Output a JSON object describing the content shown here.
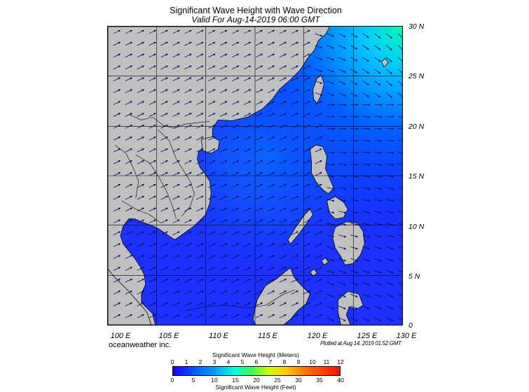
{
  "title": "Significant Wave Height with Wave Direction",
  "subtitle": "Valid For Aug-14-2019 06:00 GMT",
  "credit": "oceanweather inc.",
  "plotted": "Plotted at Aug 14, 2019 01:52 GMT",
  "lat_labels": [
    "30 N",
    "25 N",
    "20 N",
    "15 N",
    "10 N",
    "5 N",
    "0"
  ],
  "lon_labels": [
    "100 E",
    "105 E",
    "110 E",
    "115 E",
    "120 E",
    "125 E",
    "130 E"
  ],
  "colorbar": {
    "title_meters": "Significant Wave Height (Meters)",
    "title_feet": "Significant Wave Height (Feet)",
    "meters_ticks": [
      "0",
      "1",
      "2",
      "3",
      "4",
      "5",
      "6",
      "7",
      "8",
      "9",
      "10",
      "11",
      "12"
    ],
    "feet_ticks": [
      "0",
      "5",
      "10",
      "15",
      "20",
      "25",
      "30",
      "35",
      "40"
    ]
  },
  "colors": {
    "land": "#c0c0c0",
    "sea_low": "#1a00ff",
    "sea_mid": "#0080ff",
    "sea_high": "#00ffb0"
  }
}
